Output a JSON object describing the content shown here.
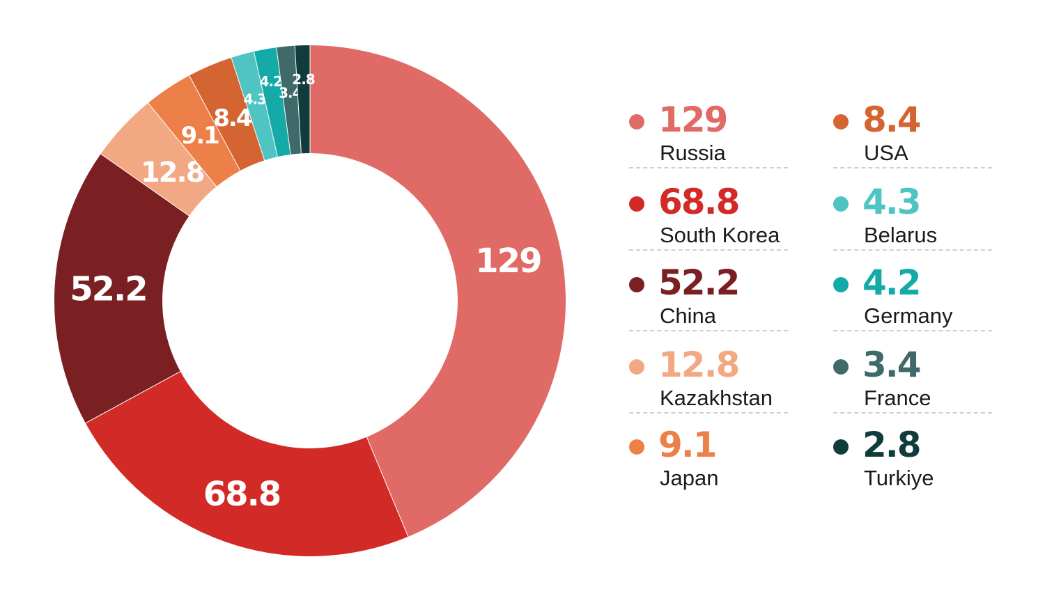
{
  "chart_data": {
    "type": "pie",
    "donut": true,
    "title": "",
    "categories": [
      "Russia",
      "South Korea",
      "China",
      "Kazakhstan",
      "Japan",
      "USA",
      "Belarus",
      "Germany",
      "France",
      "Turkiye"
    ],
    "values": [
      129,
      68.8,
      52.2,
      12.8,
      9.1,
      8.4,
      4.3,
      4.2,
      3.4,
      2.8
    ],
    "value_labels": [
      "129",
      "68.8",
      "52.2",
      "12.8",
      "9.1",
      "8.4",
      "4.3",
      "4.2",
      "3.4",
      "2.8"
    ],
    "colors": [
      "#e06a66",
      "#d22a26",
      "#7a2023",
      "#f2a883",
      "#ec8048",
      "#d46432",
      "#4fc4c3",
      "#14aaa8",
      "#3f6a69",
      "#103c3b"
    ],
    "legend_placement": "right",
    "start_angle_deg": 0,
    "direction": "clockwise"
  }
}
